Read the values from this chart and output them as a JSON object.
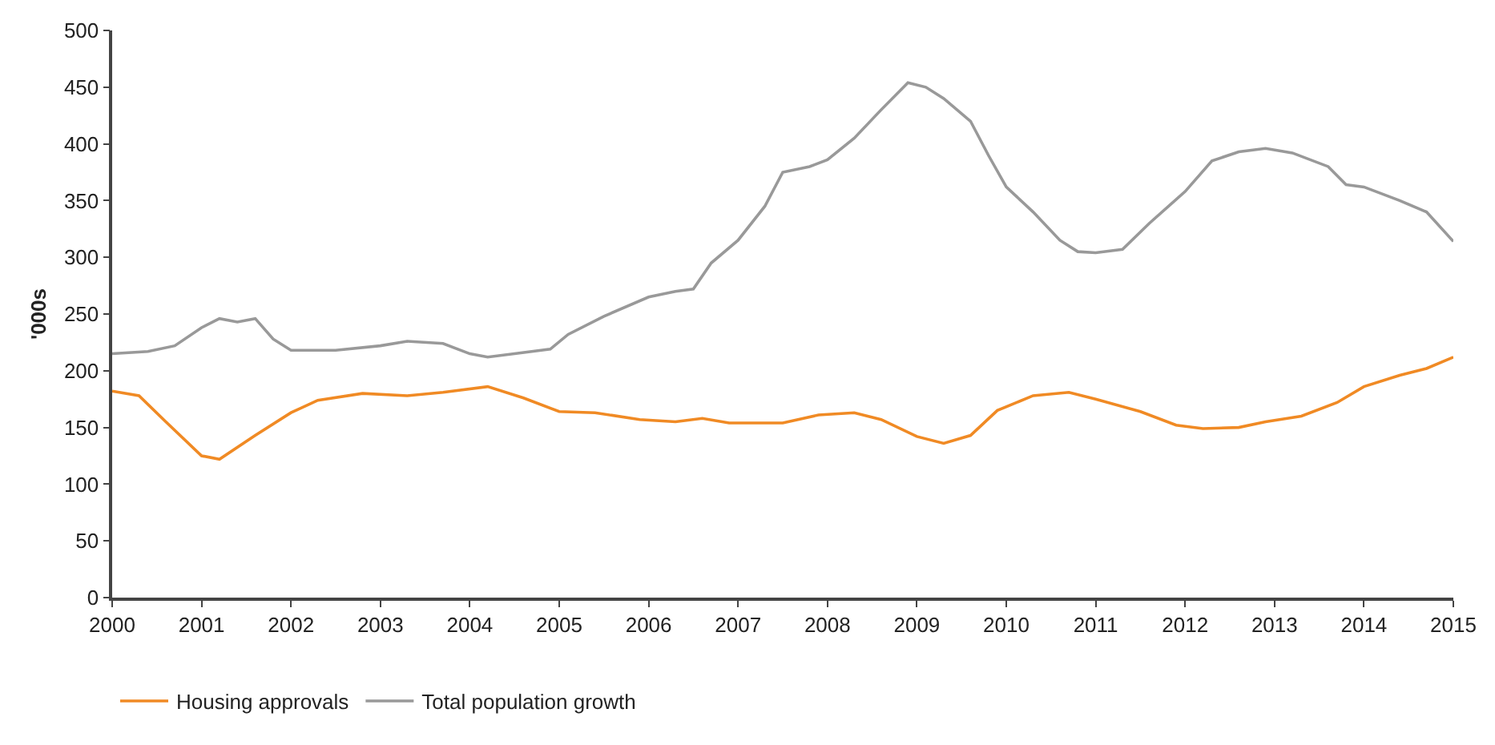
{
  "chart_data": {
    "type": "line",
    "ylabel": "'000s",
    "xlim": [
      2000,
      2015
    ],
    "xticks": [
      2000,
      2001,
      2002,
      2003,
      2004,
      2005,
      2006,
      2007,
      2008,
      2009,
      2010,
      2011,
      2012,
      2013,
      2014,
      2015
    ],
    "ylim": [
      0,
      500
    ],
    "yticks": [
      0,
      50,
      100,
      150,
      200,
      250,
      300,
      350,
      400,
      450,
      500
    ],
    "legend": "bottom",
    "marker": "none",
    "line_style": "solid",
    "series": [
      {
        "name": "Housing approvals",
        "color": "#f08a24",
        "x": [
          2000,
          2000.3,
          2000.6,
          2001.0,
          2001.2,
          2001.6,
          2002.0,
          2002.3,
          2002.8,
          2003.3,
          2003.7,
          2004.2,
          2004.6,
          2005.0,
          2005.4,
          2005.9,
          2006.3,
          2006.6,
          2006.9,
          2007.5,
          2007.9,
          2008.3,
          2008.6,
          2009.0,
          2009.3,
          2009.6,
          2009.9,
          2010.3,
          2010.7,
          2011.0,
          2011.5,
          2011.9,
          2012.2,
          2012.6,
          2012.9,
          2013.3,
          2013.7,
          2014.0,
          2014.4,
          2014.7,
          2015.0
        ],
        "values": [
          182,
          178,
          155,
          125,
          122,
          143,
          163,
          174,
          180,
          178,
          181,
          186,
          176,
          164,
          163,
          157,
          155,
          158,
          154,
          154,
          161,
          163,
          157,
          142,
          136,
          143,
          165,
          178,
          181,
          175,
          164,
          152,
          149,
          150,
          155,
          160,
          172,
          186,
          196,
          202,
          212
        ]
      },
      {
        "name": "Total population growth",
        "color": "#999999",
        "x": [
          2000,
          2000.4,
          2000.7,
          2001.0,
          2001.2,
          2001.4,
          2001.6,
          2001.8,
          2002.0,
          2002.5,
          2003.0,
          2003.3,
          2003.7,
          2004.0,
          2004.2,
          2004.5,
          2004.9,
          2005.1,
          2005.5,
          2006.0,
          2006.3,
          2006.5,
          2006.7,
          2007.0,
          2007.3,
          2007.5,
          2007.8,
          2008.0,
          2008.3,
          2008.6,
          2008.9,
          2009.1,
          2009.3,
          2009.6,
          2009.8,
          2010.0,
          2010.3,
          2010.6,
          2010.8,
          2011.0,
          2011.3,
          2011.6,
          2012.0,
          2012.3,
          2012.6,
          2012.9,
          2013.2,
          2013.6,
          2013.8,
          2014.0,
          2014.4,
          2014.7,
          2015.0
        ],
        "values": [
          215,
          217,
          222,
          238,
          246,
          243,
          246,
          228,
          218,
          218,
          222,
          226,
          224,
          215,
          212,
          215,
          219,
          232,
          248,
          265,
          270,
          272,
          295,
          315,
          345,
          375,
          380,
          386,
          405,
          430,
          454,
          450,
          440,
          420,
          390,
          362,
          340,
          315,
          305,
          304,
          307,
          330,
          358,
          385,
          393,
          396,
          392,
          380,
          364,
          362,
          350,
          340,
          314
        ]
      }
    ]
  }
}
